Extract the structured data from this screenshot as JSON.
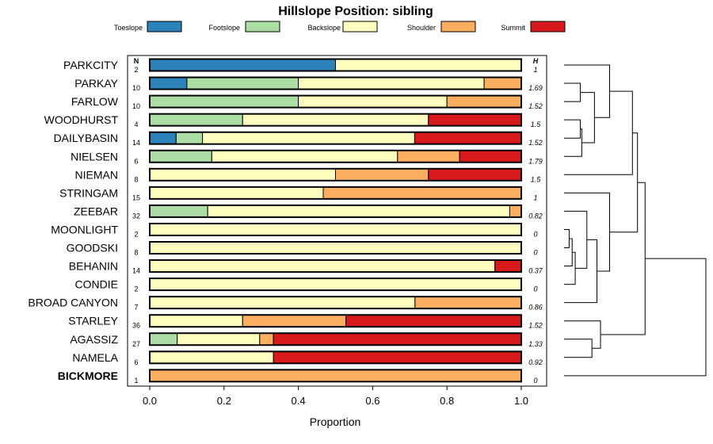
{
  "chart_data": {
    "type": "bar",
    "subtype": "stacked-horizontal-proportion",
    "title": "Hillslope Position: sibling",
    "xlabel": "Proportion",
    "ylabel": "",
    "xlim": [
      0,
      1
    ],
    "x_ticks": [
      "0.0",
      "0.2",
      "0.4",
      "0.6",
      "0.8",
      "1.0"
    ],
    "x_tick_values": [
      0,
      0.2,
      0.4,
      0.6,
      0.8,
      1.0
    ],
    "n_header": "N",
    "h_header": "H",
    "legend": [
      {
        "name": "Toeslope",
        "color": "#2B83BA"
      },
      {
        "name": "Footslope",
        "color": "#ABDDA4"
      },
      {
        "name": "Backslope",
        "color": "#FFFFBF"
      },
      {
        "name": "Shoulder",
        "color": "#FDAE61"
      },
      {
        "name": "Summit",
        "color": "#D7191C"
      }
    ],
    "categories": [
      "PARKCITY",
      "PARKAY",
      "FARLOW",
      "WOODHURST",
      "DAILYBASIN",
      "NIELSEN",
      "NIEMAN",
      "STRINGAM",
      "ZEEBAR",
      "MOONLIGHT",
      "GOODSKI",
      "BEHANIN",
      "CONDIE",
      "BROAD CANYON",
      "STARLEY",
      "AGASSIZ",
      "NAMELA",
      "BICKMORE"
    ],
    "highlight": "BICKMORE",
    "N": [
      "2",
      "10",
      "10",
      "4",
      "14",
      "6",
      "8",
      "15",
      "32",
      "2",
      "8",
      "14",
      "2",
      "7",
      "36",
      "27",
      "6",
      "1"
    ],
    "H": [
      "1",
      "1.69",
      "1.52",
      "1.5",
      "1.52",
      "1.79",
      "1.5",
      "1",
      "0.82",
      "0",
      "0",
      "0.37",
      "0",
      "0.86",
      "1.52",
      "1.33",
      "0.92",
      "0"
    ],
    "series": [
      {
        "name": "Toeslope",
        "values": [
          0.5,
          0.1,
          0,
          0,
          0.071,
          0,
          0,
          0,
          0,
          0,
          0,
          0,
          0,
          0,
          0,
          0,
          0,
          0
        ]
      },
      {
        "name": "Footslope",
        "values": [
          0,
          0.3,
          0.4,
          0.25,
          0.071,
          0.167,
          0,
          0,
          0.156,
          0,
          0,
          0,
          0,
          0,
          0,
          0.074,
          0,
          0
        ]
      },
      {
        "name": "Backslope",
        "values": [
          0.5,
          0.5,
          0.4,
          0.5,
          0.571,
          0.5,
          0.5,
          0.467,
          0.813,
          1,
          1,
          0.929,
          1,
          0.714,
          0.25,
          0.222,
          0.333,
          0
        ]
      },
      {
        "name": "Shoulder",
        "values": [
          0,
          0.1,
          0.2,
          0,
          0,
          0.167,
          0.25,
          0.533,
          0.031,
          0,
          0,
          0,
          0,
          0.286,
          0.278,
          0.037,
          0,
          1
        ]
      },
      {
        "name": "Summit",
        "values": [
          0,
          0,
          0,
          0.25,
          0.286,
          0.167,
          0.25,
          0,
          0,
          0,
          0,
          0.071,
          0,
          0,
          0.472,
          0.667,
          0.667,
          0
        ]
      }
    ],
    "dendrogram": {
      "merges": [
        [
          9,
          10,
          0.1
        ],
        [
          -1,
          11,
          0.16
        ],
        [
          -2,
          12,
          0.22
        ],
        [
          -3,
          8,
          0.45
        ],
        [
          -4,
          13,
          0.65
        ],
        [
          -5,
          7,
          0.9
        ],
        [
          1,
          2,
          0.32
        ],
        [
          3,
          4,
          0.32
        ],
        [
          -8,
          5,
          0.35
        ],
        [
          -7,
          -9,
          0.6
        ],
        [
          -10,
          0,
          0.9
        ],
        [
          -11,
          6,
          1.35
        ],
        [
          15,
          16,
          0.55
        ],
        [
          14,
          -13,
          0.72
        ],
        [
          -6,
          -12,
          1.45
        ],
        [
          -15,
          -14,
          1.6
        ],
        [
          -16,
          17,
          2.8
        ]
      ],
      "max_height": 2.8
    }
  }
}
